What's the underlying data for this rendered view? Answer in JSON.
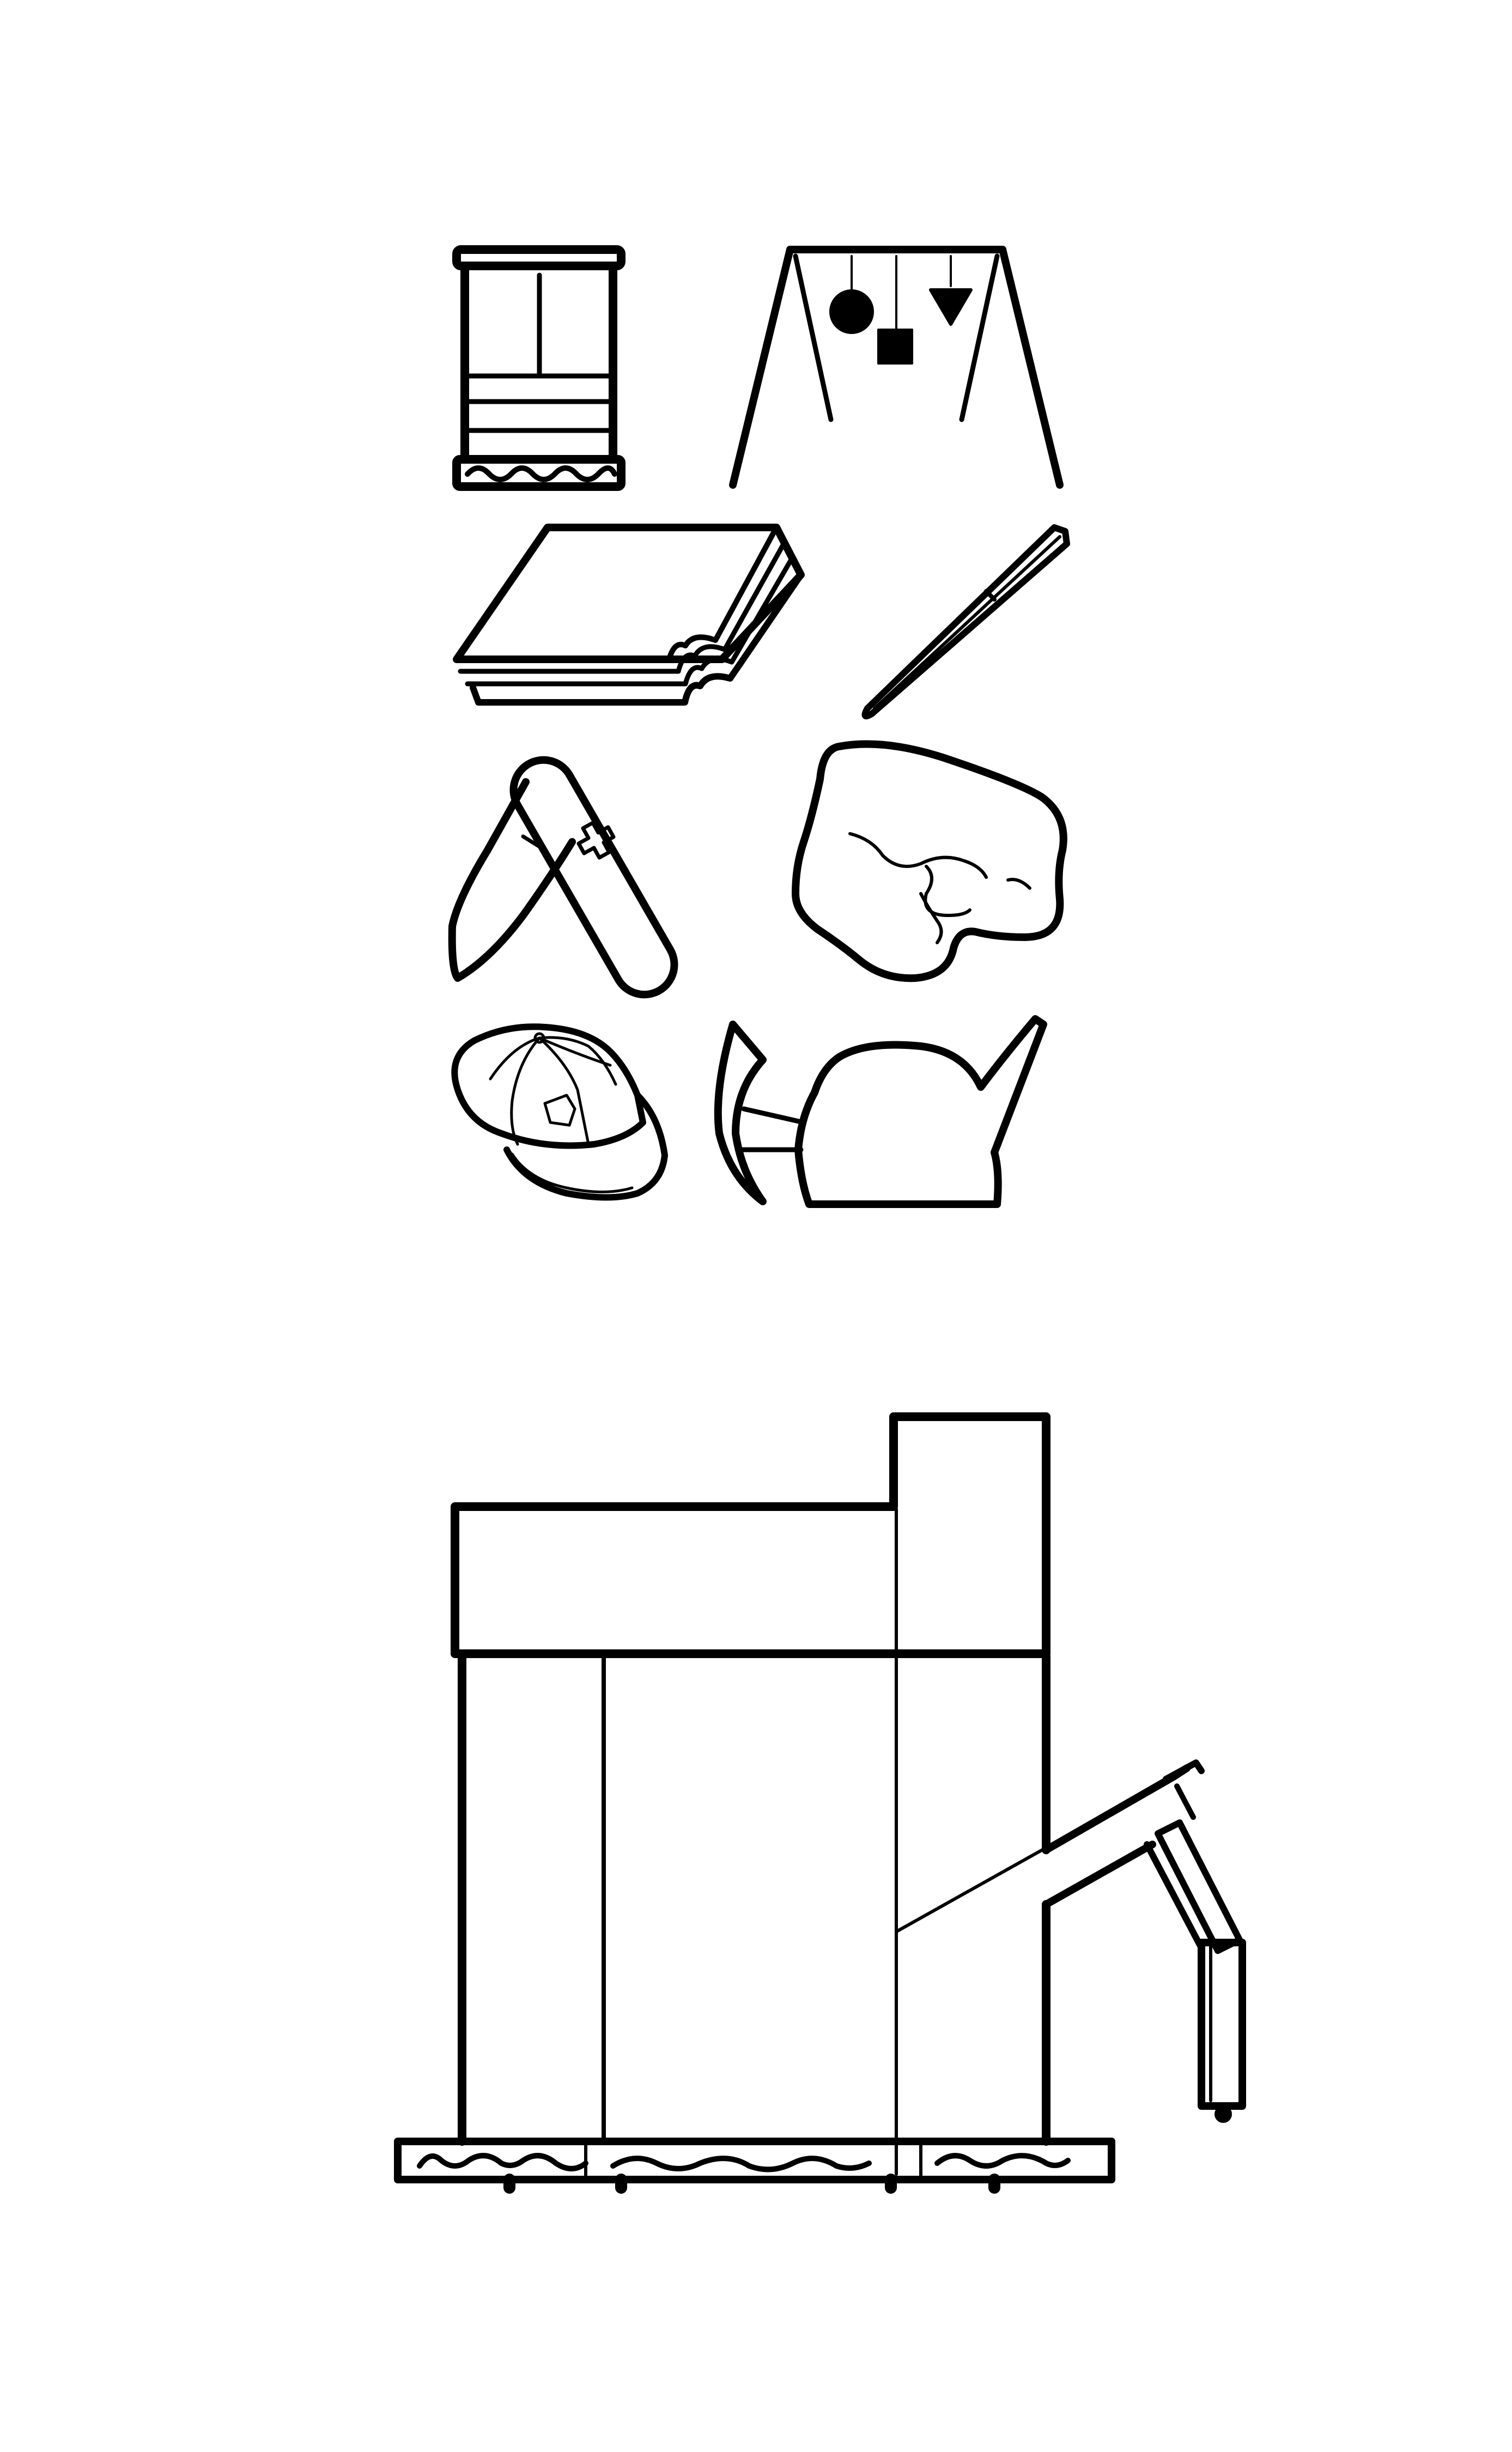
{
  "line_color": "#000000",
  "background_color": "#ffffff",
  "icons": [
    {
      "name": "cabinet-icon"
    },
    {
      "name": "swing-set-icon"
    },
    {
      "name": "book-icon"
    },
    {
      "name": "pen-icon"
    },
    {
      "name": "pocket-knife-icon"
    },
    {
      "name": "rock-icon"
    },
    {
      "name": "baseball-cap-icon"
    },
    {
      "name": "pickaxe-and-rock-icon"
    }
  ],
  "main_drawing": {
    "name": "building-with-crane-arm"
  }
}
